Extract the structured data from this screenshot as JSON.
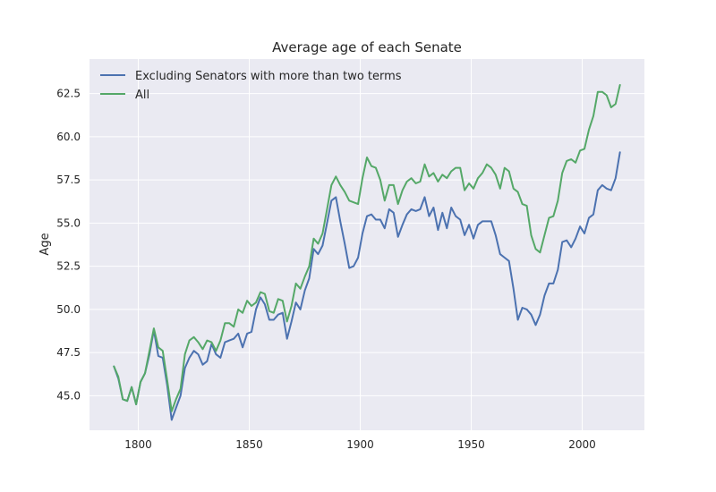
{
  "chart_data": {
    "type": "line",
    "title": "Average age of each Senate",
    "xlabel": "",
    "ylabel": "Age",
    "xlim": [
      1778,
      2028
    ],
    "ylim": [
      43,
      64.5
    ],
    "xticks": [
      1800,
      1850,
      1900,
      1950,
      2000
    ],
    "yticks": [
      45.0,
      47.5,
      50.0,
      52.5,
      55.0,
      57.5,
      60.0,
      62.5
    ],
    "grid": true,
    "legend_position": "top-left",
    "background_color": "#eaeaf2",
    "series": [
      {
        "name": "Excluding Senators with more than two terms",
        "color": "#4c72b0",
        "x": [
          1789,
          1791,
          1793,
          1795,
          1797,
          1799,
          1801,
          1803,
          1805,
          1807,
          1809,
          1811,
          1813,
          1815,
          1817,
          1819,
          1821,
          1823,
          1825,
          1827,
          1829,
          1831,
          1833,
          1835,
          1837,
          1839,
          1841,
          1843,
          1845,
          1847,
          1849,
          1851,
          1853,
          1855,
          1857,
          1859,
          1861,
          1863,
          1865,
          1867,
          1869,
          1871,
          1873,
          1875,
          1877,
          1879,
          1881,
          1883,
          1885,
          1887,
          1889,
          1891,
          1893,
          1895,
          1897,
          1899,
          1901,
          1903,
          1905,
          1907,
          1909,
          1911,
          1913,
          1915,
          1917,
          1919,
          1921,
          1923,
          1925,
          1927,
          1929,
          1931,
          1933,
          1935,
          1937,
          1939,
          1941,
          1943,
          1945,
          1947,
          1949,
          1951,
          1953,
          1955,
          1957,
          1959,
          1961,
          1963,
          1965,
          1967,
          1969,
          1971,
          1973,
          1975,
          1977,
          1979,
          1981,
          1983,
          1985,
          1987,
          1989,
          1991,
          1993,
          1995,
          1997,
          1999,
          2001,
          2003,
          2005,
          2007,
          2009,
          2011,
          2013,
          2015,
          2017
        ],
        "values": [
          46.7,
          46.0,
          44.8,
          44.7,
          45.5,
          44.5,
          45.8,
          46.3,
          47.4,
          48.8,
          47.3,
          47.2,
          45.6,
          43.6,
          44.3,
          45.0,
          46.6,
          47.2,
          47.6,
          47.4,
          46.8,
          47.0,
          48.0,
          47.4,
          47.2,
          48.1,
          48.2,
          48.3,
          48.6,
          47.8,
          48.6,
          48.7,
          50.0,
          50.7,
          50.3,
          49.4,
          49.4,
          49.7,
          49.8,
          48.3,
          49.3,
          50.4,
          50.0,
          51.1,
          51.8,
          53.5,
          53.2,
          53.7,
          55.0,
          56.3,
          56.5,
          55.1,
          53.8,
          52.4,
          52.5,
          53.0,
          54.4,
          55.4,
          55.5,
          55.2,
          55.2,
          54.7,
          55.8,
          55.6,
          54.2,
          54.9,
          55.5,
          55.8,
          55.7,
          55.8,
          56.5,
          55.4,
          55.9,
          54.6,
          55.6,
          54.7,
          55.9,
          55.4,
          55.2,
          54.3,
          54.9,
          54.1,
          54.9,
          55.1,
          55.1,
          55.1,
          54.3,
          53.2,
          53.0,
          52.8,
          51.2,
          49.4,
          50.1,
          50.0,
          49.7,
          49.1,
          49.7,
          50.8,
          51.5,
          51.5,
          52.3,
          53.9,
          54.0,
          53.6,
          54.1,
          54.8,
          54.4,
          55.3,
          55.5,
          56.9,
          57.2,
          57.0,
          56.9,
          57.6,
          59.1
        ]
      },
      {
        "name": "All",
        "color": "#55a868",
        "x": [
          1789,
          1791,
          1793,
          1795,
          1797,
          1799,
          1801,
          1803,
          1805,
          1807,
          1809,
          1811,
          1813,
          1815,
          1817,
          1819,
          1821,
          1823,
          1825,
          1827,
          1829,
          1831,
          1833,
          1835,
          1837,
          1839,
          1841,
          1843,
          1845,
          1847,
          1849,
          1851,
          1853,
          1855,
          1857,
          1859,
          1861,
          1863,
          1865,
          1867,
          1869,
          1871,
          1873,
          1875,
          1877,
          1879,
          1881,
          1883,
          1885,
          1887,
          1889,
          1891,
          1893,
          1895,
          1897,
          1899,
          1901,
          1903,
          1905,
          1907,
          1909,
          1911,
          1913,
          1915,
          1917,
          1919,
          1921,
          1923,
          1925,
          1927,
          1929,
          1931,
          1933,
          1935,
          1937,
          1939,
          1941,
          1943,
          1945,
          1947,
          1949,
          1951,
          1953,
          1955,
          1957,
          1959,
          1961,
          1963,
          1965,
          1967,
          1969,
          1971,
          1973,
          1975,
          1977,
          1979,
          1981,
          1983,
          1985,
          1987,
          1989,
          1991,
          1993,
          1995,
          1997,
          1999,
          2001,
          2003,
          2005,
          2007,
          2009,
          2011,
          2013,
          2015,
          2017
        ],
        "values": [
          46.7,
          46.1,
          44.8,
          44.7,
          45.5,
          44.5,
          45.8,
          46.3,
          47.6,
          48.9,
          47.8,
          47.6,
          45.9,
          44.1,
          44.8,
          45.4,
          47.4,
          48.2,
          48.4,
          48.1,
          47.7,
          48.2,
          48.1,
          47.6,
          48.2,
          49.2,
          49.2,
          49.0,
          50.0,
          49.8,
          50.5,
          50.2,
          50.4,
          51.0,
          50.9,
          49.9,
          49.8,
          50.6,
          50.5,
          49.3,
          50.2,
          51.5,
          51.2,
          51.9,
          52.5,
          54.1,
          53.8,
          54.4,
          55.8,
          57.2,
          57.7,
          57.2,
          56.8,
          56.3,
          56.2,
          56.1,
          57.6,
          58.8,
          58.3,
          58.2,
          57.5,
          56.3,
          57.2,
          57.2,
          56.1,
          56.9,
          57.4,
          57.6,
          57.3,
          57.4,
          58.4,
          57.7,
          57.9,
          57.4,
          57.8,
          57.6,
          58.0,
          58.2,
          58.2,
          56.9,
          57.3,
          57.0,
          57.6,
          57.9,
          58.4,
          58.2,
          57.8,
          57.0,
          58.2,
          58.0,
          57.0,
          56.8,
          56.1,
          56.0,
          54.3,
          53.5,
          53.3,
          54.3,
          55.3,
          55.4,
          56.3,
          57.9,
          58.6,
          58.7,
          58.5,
          59.2,
          59.3,
          60.4,
          61.2,
          62.6,
          62.6,
          62.4,
          61.7,
          61.9,
          63.0
        ]
      }
    ]
  }
}
